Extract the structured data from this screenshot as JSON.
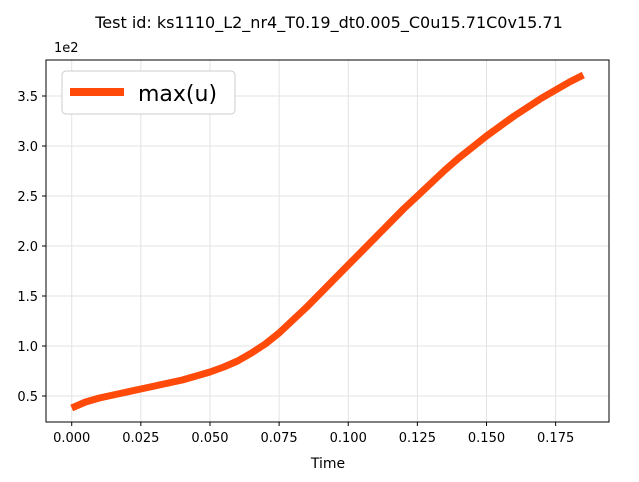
{
  "chart_data": {
    "type": "line",
    "title": "Test id:  ks1110_L2_nr4_T0.19_dt0.005_C0u15.71C0v15.71",
    "xlabel": "Time",
    "ylabel": "",
    "y_offset_label": "1e2",
    "xlim": [
      -0.0093,
      0.1943
    ],
    "ylim": [
      0.24,
      3.86
    ],
    "x_ticks": [
      0.0,
      0.025,
      0.05,
      0.075,
      0.1,
      0.125,
      0.15,
      0.175
    ],
    "x_tick_labels": [
      "0.000",
      "0.025",
      "0.050",
      "0.075",
      "0.100",
      "0.125",
      "0.150",
      "0.175"
    ],
    "y_ticks": [
      0.5,
      1.0,
      1.5,
      2.0,
      2.5,
      3.0,
      3.5
    ],
    "y_tick_labels": [
      "0.5",
      "1.0",
      "1.5",
      "2.0",
      "2.5",
      "3.0",
      "3.5"
    ],
    "grid": true,
    "legend_position": "top-left",
    "series": [
      {
        "name": "max(u)",
        "color": "#ff4a0a",
        "x": [
          0.0,
          0.005,
          0.01,
          0.015,
          0.02,
          0.025,
          0.03,
          0.035,
          0.04,
          0.045,
          0.05,
          0.055,
          0.06,
          0.065,
          0.07,
          0.075,
          0.08,
          0.085,
          0.09,
          0.095,
          0.1,
          0.105,
          0.11,
          0.115,
          0.12,
          0.125,
          0.13,
          0.135,
          0.14,
          0.145,
          0.15,
          0.155,
          0.16,
          0.165,
          0.17,
          0.175,
          0.18,
          0.185
        ],
        "values": [
          0.38,
          0.44,
          0.48,
          0.51,
          0.54,
          0.57,
          0.6,
          0.63,
          0.66,
          0.7,
          0.74,
          0.79,
          0.85,
          0.93,
          1.02,
          1.13,
          1.26,
          1.39,
          1.53,
          1.67,
          1.81,
          1.95,
          2.09,
          2.23,
          2.37,
          2.5,
          2.63,
          2.76,
          2.88,
          2.99,
          3.1,
          3.2,
          3.3,
          3.39,
          3.48,
          3.56,
          3.64,
          3.71
        ]
      }
    ]
  }
}
